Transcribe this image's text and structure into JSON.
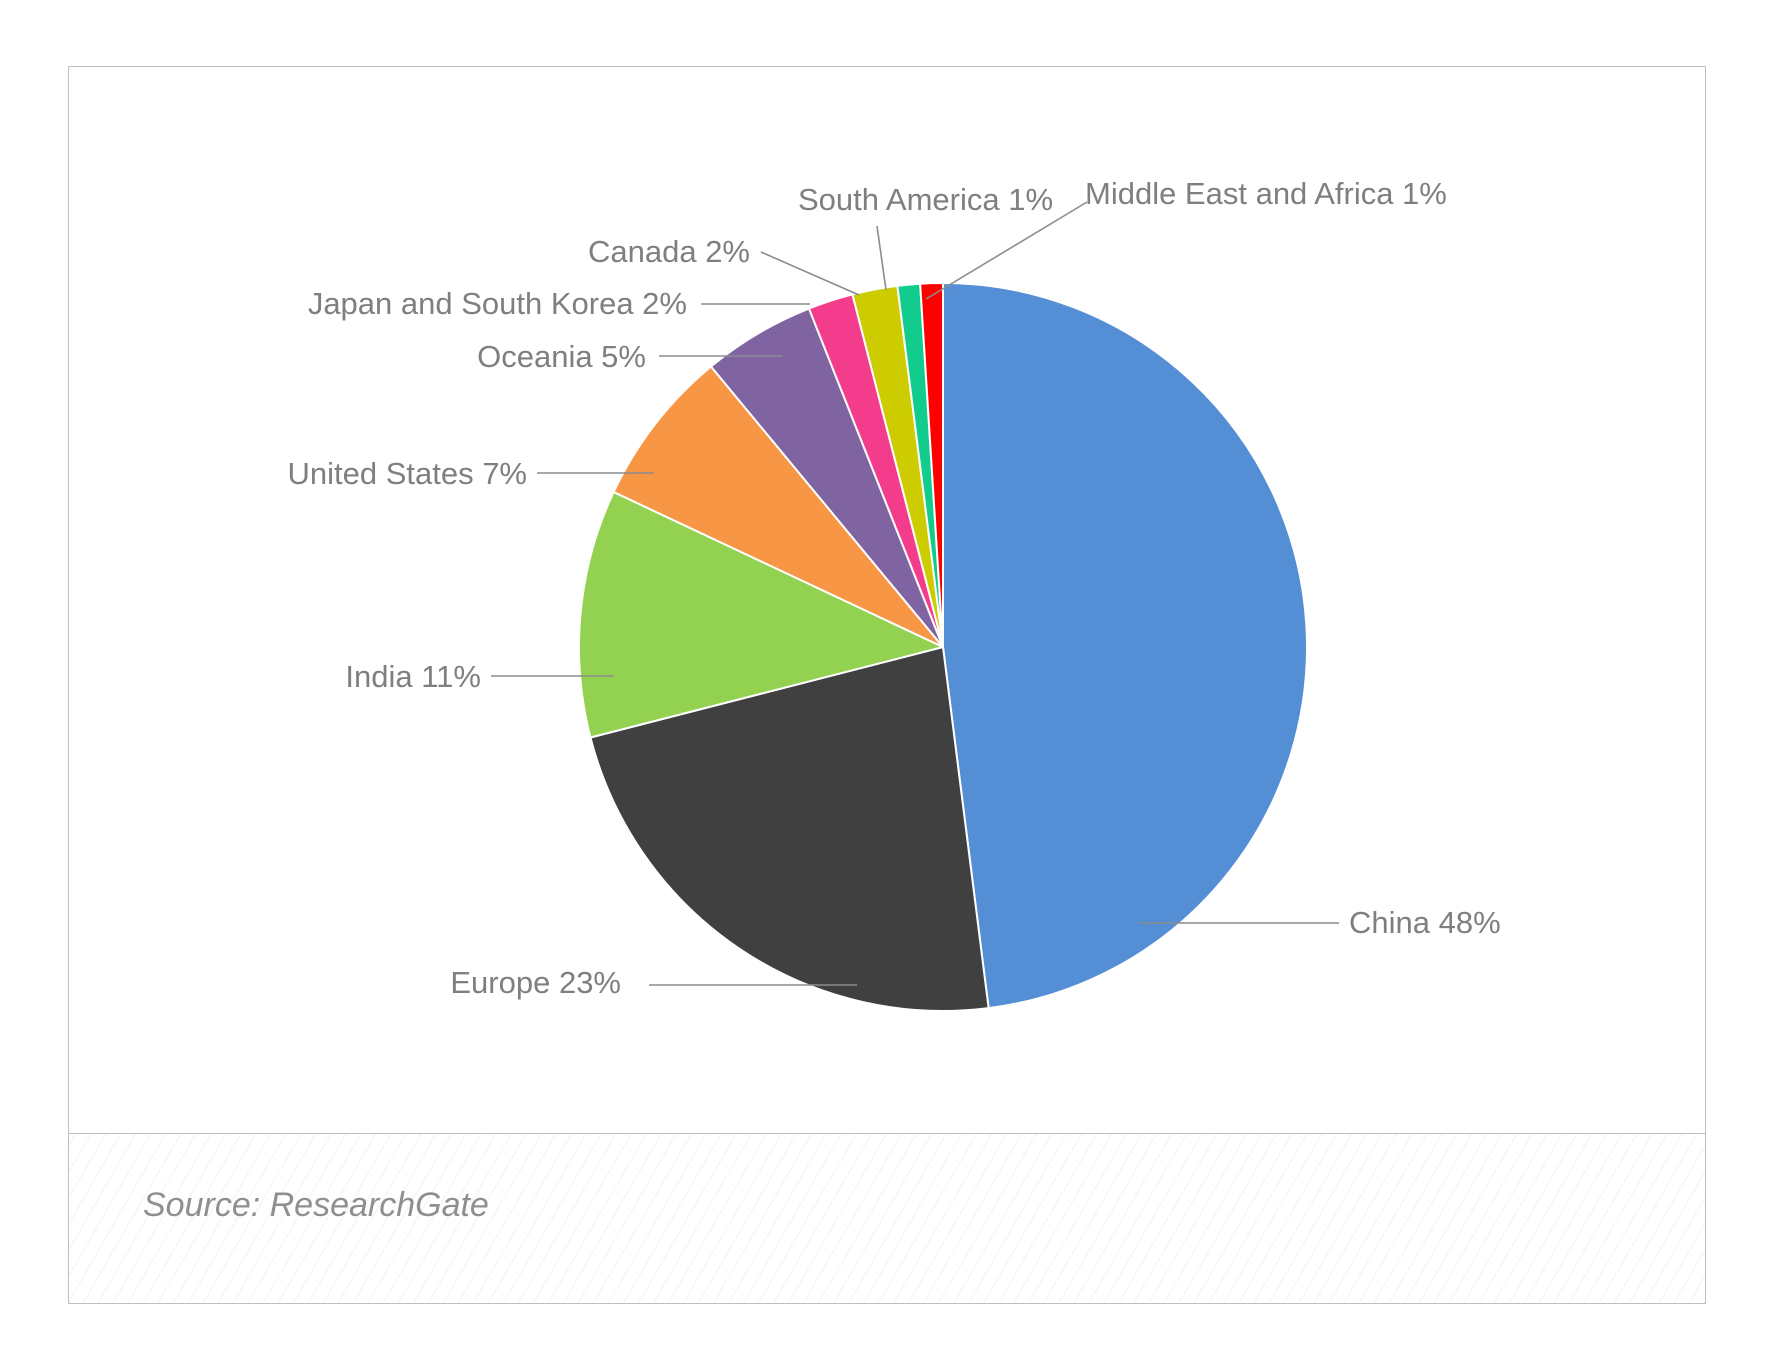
{
  "chart_data": {
    "type": "pie",
    "title": "",
    "slices": [
      {
        "label": "China",
        "value": 48,
        "display": "China 48%",
        "color": "#548ed4"
      },
      {
        "label": "Europe",
        "value": 23,
        "display": "Europe 23%",
        "color": "#404040"
      },
      {
        "label": "India",
        "value": 11,
        "display": "India 11%",
        "color": "#93d150"
      },
      {
        "label": "United States",
        "value": 7,
        "display": "United States 7%",
        "color": "#f79645"
      },
      {
        "label": "Oceania",
        "value": 5,
        "display": "Oceania 5%",
        "color": "#8064a2"
      },
      {
        "label": "Japan and South Korea",
        "value": 2,
        "display": "Japan and South Korea 2%",
        "color": "#f33d8c"
      },
      {
        "label": "Canada",
        "value": 2,
        "display": "Canada 2%",
        "color": "#cccc00"
      },
      {
        "label": "South America",
        "value": 1,
        "display": "South America 1%",
        "color": "#12cc8e"
      },
      {
        "label": "Middle East and Africa",
        "value": 1,
        "display": "Middle East and Africa 1%",
        "color": "#ff0000"
      }
    ],
    "label_color": "#7f7f7f",
    "leader_color": "#8c8c8c",
    "legend": "none"
  },
  "footer": {
    "source": "Source: ResearchGate"
  }
}
